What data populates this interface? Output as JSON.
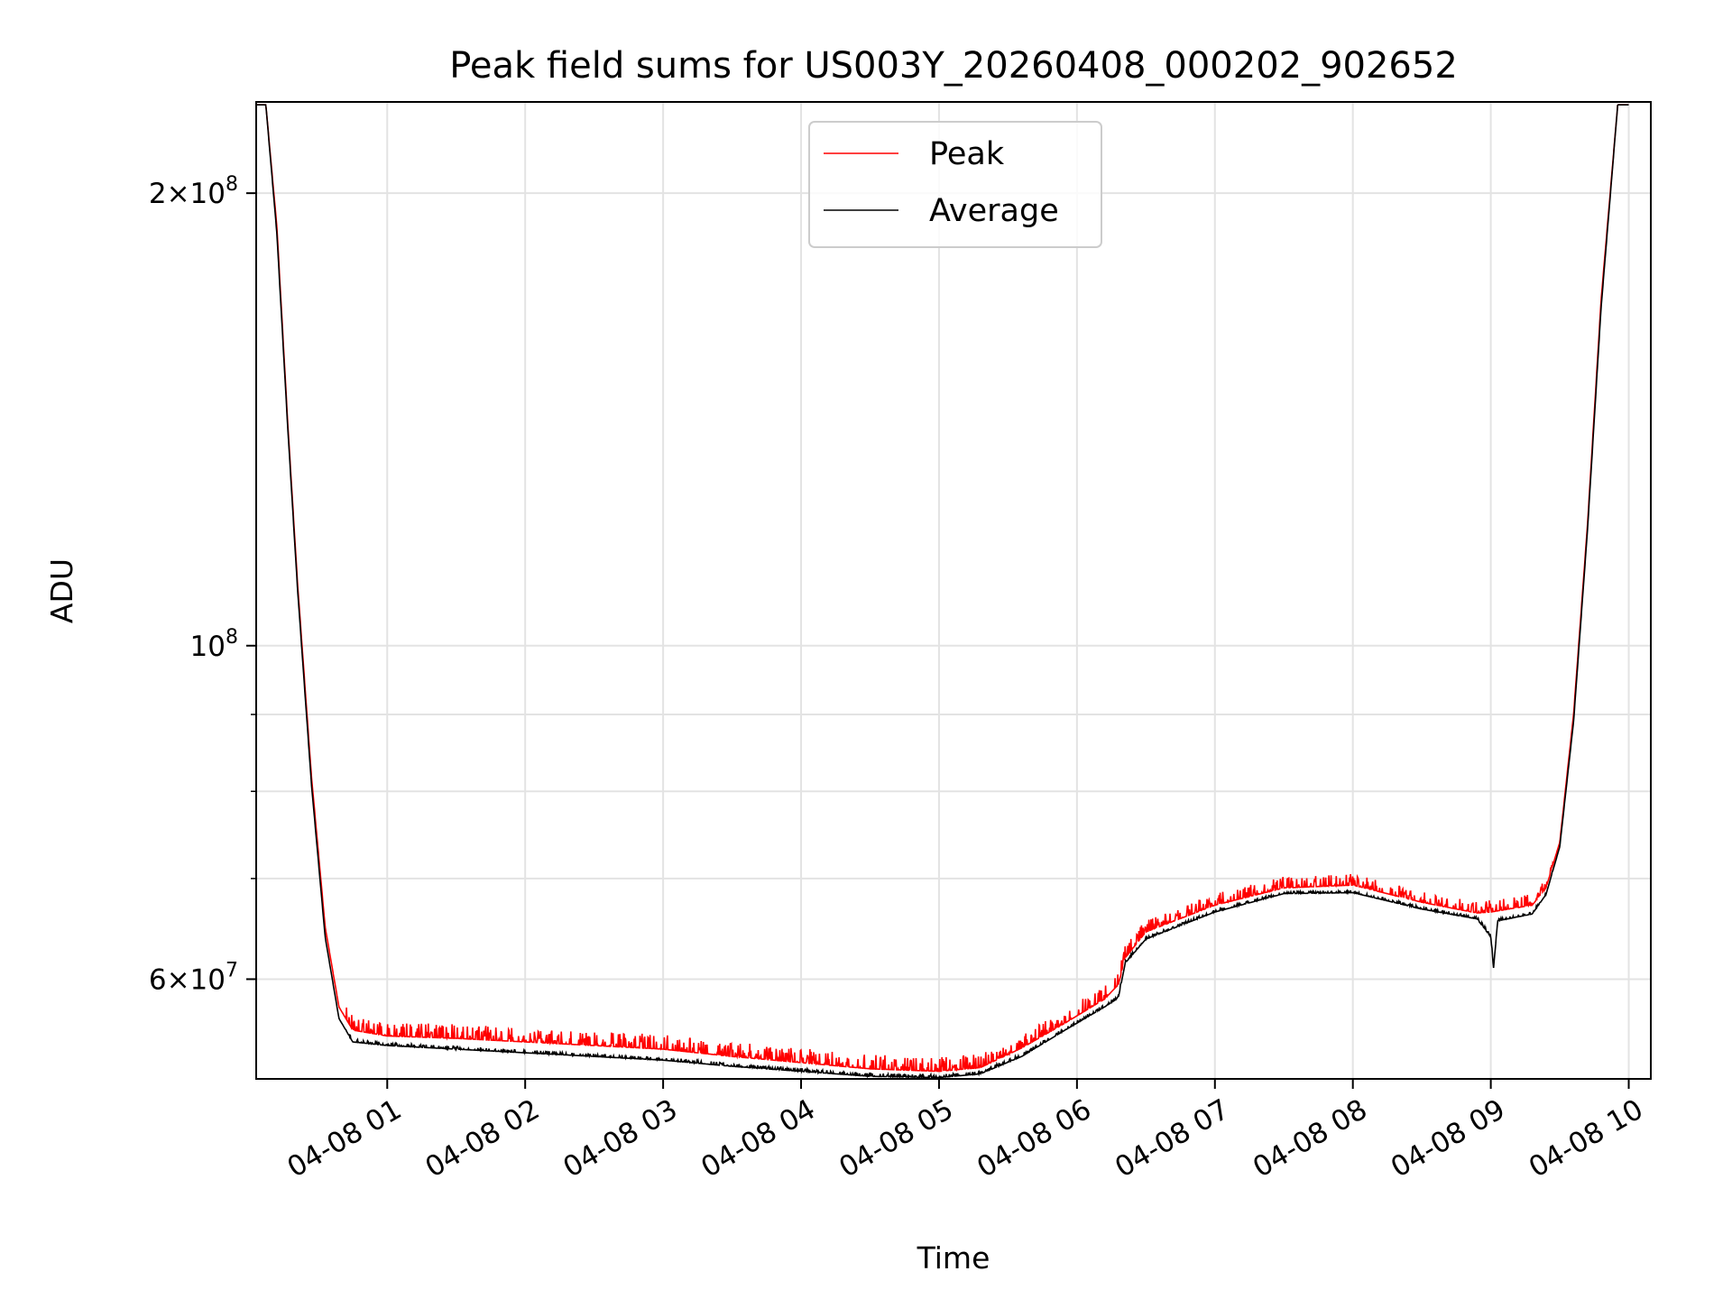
{
  "chart_data": {
    "type": "line",
    "title": "Peak field sums for US003Y_20260408_000202_902652",
    "xlabel": "Time",
    "ylabel": "ADU",
    "yscale": "log",
    "ylim": [
      51500000,
      230000000
    ],
    "xlim_hours": [
      0.05,
      10.16
    ],
    "grid": true,
    "legend_position": "top-center",
    "x_ticks": [
      {
        "hour": 1,
        "label": "04-08 01"
      },
      {
        "hour": 2,
        "label": "04-08 02"
      },
      {
        "hour": 3,
        "label": "04-08 03"
      },
      {
        "hour": 4,
        "label": "04-08 04"
      },
      {
        "hour": 5,
        "label": "04-08 05"
      },
      {
        "hour": 6,
        "label": "04-08 06"
      },
      {
        "hour": 7,
        "label": "04-08 07"
      },
      {
        "hour": 8,
        "label": "04-08 08"
      },
      {
        "hour": 9,
        "label": "04-08 09"
      },
      {
        "hour": 10,
        "label": "04-08 10"
      }
    ],
    "y_ticks_major": [
      {
        "value": 60000000,
        "mant": "6",
        "exp": "7"
      },
      {
        "value": 100000000,
        "mant": "",
        "exp": "8"
      },
      {
        "value": 200000000,
        "mant": "2",
        "exp": "8"
      }
    ],
    "y_ticks_minor": [
      70000000,
      80000000,
      90000000
    ],
    "series": [
      {
        "name": "Peak",
        "color": "#ff0000",
        "noise": 1200000,
        "points": [
          [
            0.05,
            229000000
          ],
          [
            0.12,
            229000000
          ],
          [
            0.2,
            190000000
          ],
          [
            0.28,
            140000000
          ],
          [
            0.35,
            110000000
          ],
          [
            0.45,
            82000000
          ],
          [
            0.55,
            65000000
          ],
          [
            0.65,
            57500000
          ],
          [
            0.75,
            55500000
          ],
          [
            1.0,
            55000000
          ],
          [
            1.5,
            54800000
          ],
          [
            2.0,
            54500000
          ],
          [
            2.5,
            54200000
          ],
          [
            3.0,
            53900000
          ],
          [
            3.5,
            53300000
          ],
          [
            4.0,
            52800000
          ],
          [
            4.5,
            52300000
          ],
          [
            5.0,
            52100000
          ],
          [
            5.3,
            52400000
          ],
          [
            5.6,
            54000000
          ],
          [
            5.9,
            56000000
          ],
          [
            6.2,
            58200000
          ],
          [
            6.3,
            59500000
          ],
          [
            6.35,
            62000000
          ],
          [
            6.5,
            64500000
          ],
          [
            7.0,
            67200000
          ],
          [
            7.5,
            69000000
          ],
          [
            8.0,
            69300000
          ],
          [
            8.5,
            67500000
          ],
          [
            8.9,
            66400000
          ],
          [
            9.0,
            66500000
          ],
          [
            9.3,
            67200000
          ],
          [
            9.4,
            69000000
          ],
          [
            9.5,
            74000000
          ],
          [
            9.6,
            90000000
          ],
          [
            9.7,
            120000000
          ],
          [
            9.8,
            170000000
          ],
          [
            9.92,
            229000000
          ],
          [
            10.0,
            229000000
          ]
        ]
      },
      {
        "name": "Average",
        "color": "#000000",
        "noise": 250000,
        "points": [
          [
            0.05,
            229000000
          ],
          [
            0.12,
            229000000
          ],
          [
            0.2,
            188000000
          ],
          [
            0.28,
            139000000
          ],
          [
            0.35,
            109000000
          ],
          [
            0.45,
            81000000
          ],
          [
            0.55,
            64000000
          ],
          [
            0.65,
            56500000
          ],
          [
            0.75,
            54500000
          ],
          [
            1.0,
            54200000
          ],
          [
            1.5,
            53900000
          ],
          [
            2.0,
            53600000
          ],
          [
            2.5,
            53300000
          ],
          [
            3.0,
            53000000
          ],
          [
            3.5,
            52500000
          ],
          [
            4.0,
            52100000
          ],
          [
            4.5,
            51700000
          ],
          [
            5.0,
            51600000
          ],
          [
            5.3,
            51900000
          ],
          [
            5.6,
            53300000
          ],
          [
            5.9,
            55400000
          ],
          [
            6.2,
            57500000
          ],
          [
            6.3,
            58300000
          ],
          [
            6.35,
            61500000
          ],
          [
            6.5,
            63800000
          ],
          [
            7.0,
            66500000
          ],
          [
            7.5,
            68400000
          ],
          [
            8.0,
            68500000
          ],
          [
            8.5,
            66800000
          ],
          [
            8.9,
            65800000
          ],
          [
            9.0,
            64000000
          ],
          [
            9.02,
            61000000
          ],
          [
            9.05,
            65600000
          ],
          [
            9.3,
            66300000
          ],
          [
            9.4,
            68300000
          ],
          [
            9.5,
            73500000
          ],
          [
            9.6,
            89000000
          ],
          [
            9.7,
            119000000
          ],
          [
            9.8,
            168000000
          ],
          [
            9.92,
            229000000
          ],
          [
            10.0,
            229000000
          ]
        ]
      }
    ]
  }
}
